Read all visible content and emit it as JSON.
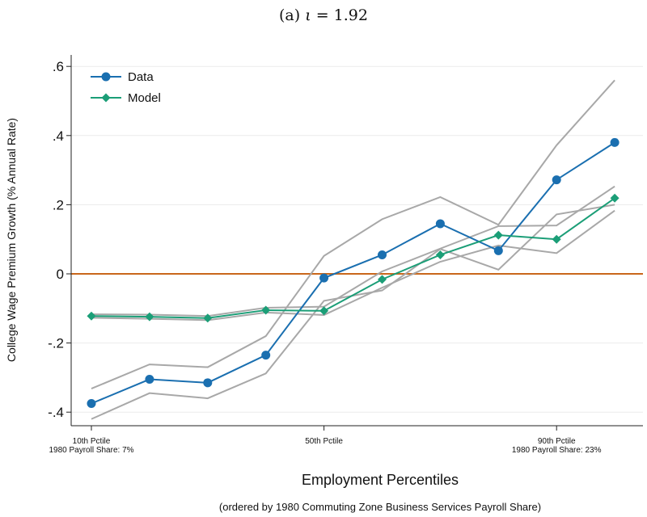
{
  "title": {
    "prefix": "(a) ",
    "symbol": "ι",
    "suffix": " = 1.92"
  },
  "chart_data": {
    "type": "line",
    "ylabel": "College Wage Premium Growth (% Annual Rate)",
    "xlabel": "Employment Percentiles",
    "xnote": "(ordered by 1980 Commuting Zone Business Services Payroll Share)",
    "ylim": [
      -0.43,
      0.6
    ],
    "xlim": [
      0.5,
      10.5
    ],
    "yticks": [
      -0.4,
      -0.2,
      0,
      0.2,
      0.4,
      0.6
    ],
    "ytick_labels": [
      "-.4",
      "-.2",
      "0",
      ".2",
      ".4",
      ".6"
    ],
    "xticks": [
      {
        "x": 1,
        "line1": "10th Pctile",
        "line2": "1980 Payroll Share: 7%"
      },
      {
        "x": 5,
        "line1": "50th Pctile",
        "line2": ""
      },
      {
        "x": 9,
        "line1": "90th Pctile",
        "line2": "1980 Payroll Share: 23%"
      }
    ],
    "x": [
      1,
      2,
      3,
      4,
      5,
      6,
      7,
      8,
      9,
      10
    ],
    "grid": "horizontal",
    "legend_position": "top-left",
    "zero_line_color": "#c9671b",
    "series": [
      {
        "name": "Data",
        "color": "#1a6fb0",
        "marker": "circle",
        "values": [
          -0.375,
          -0.305,
          -0.315,
          -0.235,
          -0.012,
          0.055,
          0.145,
          0.067,
          0.272,
          0.38
        ]
      },
      {
        "name": "Model",
        "color": "#1b9e77",
        "marker": "diamond",
        "values": [
          -0.122,
          -0.124,
          -0.128,
          -0.105,
          -0.107,
          -0.016,
          0.055,
          0.112,
          0.1,
          0.219
        ]
      }
    ],
    "bands": [
      {
        "color": "#a8a8a8",
        "values": [
          -0.332,
          -0.262,
          -0.27,
          -0.18,
          0.052,
          0.158,
          0.222,
          0.142,
          0.372,
          0.56
        ]
      },
      {
        "color": "#a8a8a8",
        "values": [
          -0.42,
          -0.345,
          -0.36,
          -0.288,
          -0.078,
          -0.048,
          0.072,
          0.012,
          0.172,
          0.2
        ]
      },
      {
        "color": "#a8a8a8",
        "values": [
          -0.117,
          -0.118,
          -0.122,
          -0.098,
          -0.095,
          0.007,
          0.073,
          0.138,
          0.14,
          0.253
        ]
      },
      {
        "color": "#a8a8a8",
        "values": [
          -0.127,
          -0.13,
          -0.134,
          -0.112,
          -0.119,
          -0.04,
          0.035,
          0.082,
          0.06,
          0.183
        ]
      }
    ]
  }
}
